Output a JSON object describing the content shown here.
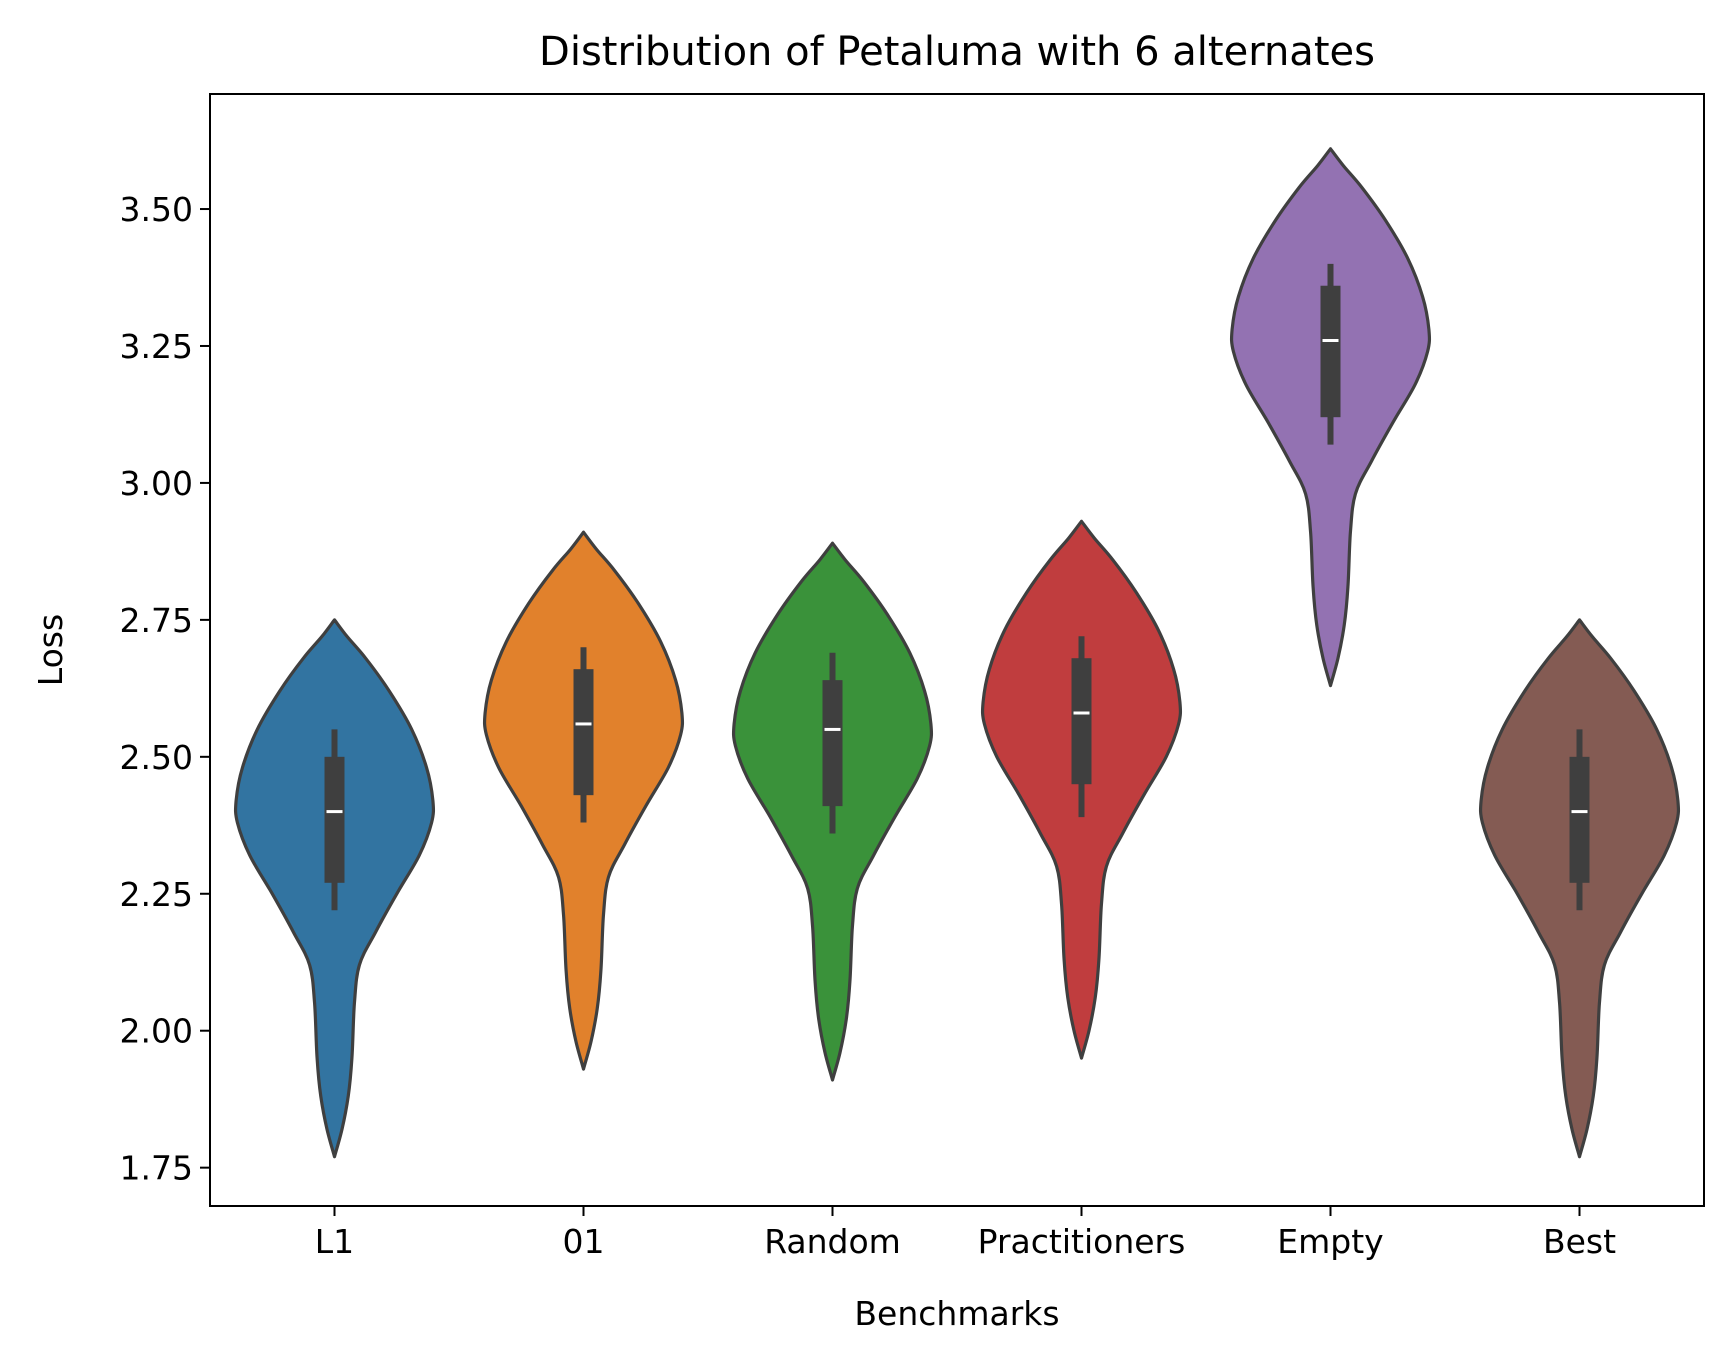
{
  "chart_data": {
    "type": "violin",
    "title": "Distribution of Petaluma with 6 alternates",
    "xlabel": "Benchmarks",
    "ylabel": "Loss",
    "ylim": [
      1.68,
      3.71
    ],
    "yticks": [
      1.75,
      2.0,
      2.25,
      2.5,
      2.75,
      3.0,
      3.25,
      3.5
    ],
    "ytick_labels": [
      "1.75",
      "2.00",
      "2.25",
      "2.50",
      "2.75",
      "3.00",
      "3.25",
      "3.50"
    ],
    "categories": [
      "L1",
      "01",
      "Random",
      "Practitioners",
      "Empty",
      "Best"
    ],
    "grid": false,
    "legend": "none",
    "colors": [
      "#3274a1",
      "#e1812c",
      "#3a923a",
      "#c03d3e",
      "#9372b2",
      "#845b53"
    ],
    "outline_color": "#3f3f3f",
    "violins": [
      {
        "category": "L1",
        "min": 1.77,
        "max": 2.75,
        "q1": 2.27,
        "median": 2.4,
        "q3": 2.5,
        "whisker_low": 2.22,
        "whisker_high": 2.55,
        "mode": 2.42,
        "max_halfwidth": 0.79,
        "profile": [
          [
            1.77,
            0.0
          ],
          [
            1.82,
            0.06
          ],
          [
            1.88,
            0.11
          ],
          [
            1.95,
            0.14
          ],
          [
            2.05,
            0.16
          ],
          [
            2.12,
            0.2
          ],
          [
            2.18,
            0.33
          ],
          [
            2.25,
            0.5
          ],
          [
            2.32,
            0.68
          ],
          [
            2.38,
            0.78
          ],
          [
            2.42,
            0.79
          ],
          [
            2.48,
            0.74
          ],
          [
            2.55,
            0.62
          ],
          [
            2.62,
            0.44
          ],
          [
            2.68,
            0.25
          ],
          [
            2.72,
            0.1
          ],
          [
            2.75,
            0.0
          ]
        ]
      },
      {
        "category": "01",
        "min": 1.93,
        "max": 2.91,
        "q1": 2.43,
        "median": 2.56,
        "q3": 2.66,
        "whisker_low": 2.38,
        "whisker_high": 2.7,
        "mode": 2.58,
        "max_halfwidth": 0.79,
        "profile": [
          [
            1.93,
            0.0
          ],
          [
            1.98,
            0.06
          ],
          [
            2.04,
            0.11
          ],
          [
            2.11,
            0.14
          ],
          [
            2.21,
            0.16
          ],
          [
            2.28,
            0.2
          ],
          [
            2.34,
            0.33
          ],
          [
            2.41,
            0.5
          ],
          [
            2.48,
            0.68
          ],
          [
            2.54,
            0.78
          ],
          [
            2.58,
            0.79
          ],
          [
            2.64,
            0.74
          ],
          [
            2.71,
            0.62
          ],
          [
            2.78,
            0.44
          ],
          [
            2.84,
            0.25
          ],
          [
            2.88,
            0.1
          ],
          [
            2.91,
            0.0
          ]
        ]
      },
      {
        "category": "Random",
        "min": 1.91,
        "max": 2.89,
        "q1": 2.41,
        "median": 2.55,
        "q3": 2.64,
        "whisker_low": 2.36,
        "whisker_high": 2.69,
        "mode": 2.56,
        "max_halfwidth": 0.79,
        "profile": [
          [
            1.91,
            0.0
          ],
          [
            1.96,
            0.06
          ],
          [
            2.02,
            0.11
          ],
          [
            2.09,
            0.14
          ],
          [
            2.19,
            0.16
          ],
          [
            2.26,
            0.2
          ],
          [
            2.32,
            0.33
          ],
          [
            2.39,
            0.5
          ],
          [
            2.46,
            0.68
          ],
          [
            2.52,
            0.78
          ],
          [
            2.56,
            0.79
          ],
          [
            2.62,
            0.74
          ],
          [
            2.69,
            0.62
          ],
          [
            2.76,
            0.44
          ],
          [
            2.82,
            0.25
          ],
          [
            2.86,
            0.1
          ],
          [
            2.89,
            0.0
          ]
        ]
      },
      {
        "category": "Practitioners",
        "min": 1.95,
        "max": 2.93,
        "q1": 2.45,
        "median": 2.58,
        "q3": 2.68,
        "whisker_low": 2.39,
        "whisker_high": 2.72,
        "mode": 2.59,
        "max_halfwidth": 0.79,
        "profile": [
          [
            1.95,
            0.0
          ],
          [
            2.0,
            0.06
          ],
          [
            2.06,
            0.11
          ],
          [
            2.13,
            0.14
          ],
          [
            2.23,
            0.16
          ],
          [
            2.3,
            0.2
          ],
          [
            2.36,
            0.33
          ],
          [
            2.43,
            0.5
          ],
          [
            2.5,
            0.68
          ],
          [
            2.56,
            0.78
          ],
          [
            2.6,
            0.79
          ],
          [
            2.66,
            0.74
          ],
          [
            2.73,
            0.62
          ],
          [
            2.8,
            0.44
          ],
          [
            2.86,
            0.25
          ],
          [
            2.9,
            0.1
          ],
          [
            2.93,
            0.0
          ]
        ]
      },
      {
        "category": "Empty",
        "min": 2.63,
        "max": 3.61,
        "q1": 3.12,
        "median": 3.26,
        "q3": 3.36,
        "whisker_low": 3.07,
        "whisker_high": 3.4,
        "mode": 3.27,
        "max_halfwidth": 0.79,
        "profile": [
          [
            2.63,
            0.0
          ],
          [
            2.68,
            0.06
          ],
          [
            2.74,
            0.11
          ],
          [
            2.81,
            0.14
          ],
          [
            2.91,
            0.16
          ],
          [
            2.98,
            0.2
          ],
          [
            3.04,
            0.33
          ],
          [
            3.11,
            0.5
          ],
          [
            3.18,
            0.68
          ],
          [
            3.24,
            0.78
          ],
          [
            3.28,
            0.79
          ],
          [
            3.34,
            0.74
          ],
          [
            3.41,
            0.62
          ],
          [
            3.48,
            0.44
          ],
          [
            3.54,
            0.25
          ],
          [
            3.58,
            0.1
          ],
          [
            3.61,
            0.0
          ]
        ]
      },
      {
        "category": "Best",
        "min": 1.77,
        "max": 2.75,
        "q1": 2.27,
        "median": 2.4,
        "q3": 2.5,
        "whisker_low": 2.22,
        "whisker_high": 2.55,
        "mode": 2.42,
        "max_halfwidth": 0.79,
        "profile": [
          [
            1.77,
            0.0
          ],
          [
            1.82,
            0.06
          ],
          [
            1.88,
            0.11
          ],
          [
            1.95,
            0.14
          ],
          [
            2.05,
            0.16
          ],
          [
            2.12,
            0.2
          ],
          [
            2.18,
            0.33
          ],
          [
            2.25,
            0.5
          ],
          [
            2.32,
            0.68
          ],
          [
            2.38,
            0.78
          ],
          [
            2.42,
            0.79
          ],
          [
            2.48,
            0.74
          ],
          [
            2.55,
            0.62
          ],
          [
            2.62,
            0.44
          ],
          [
            2.68,
            0.25
          ],
          [
            2.72,
            0.1
          ],
          [
            2.75,
            0.0
          ]
        ]
      }
    ]
  }
}
